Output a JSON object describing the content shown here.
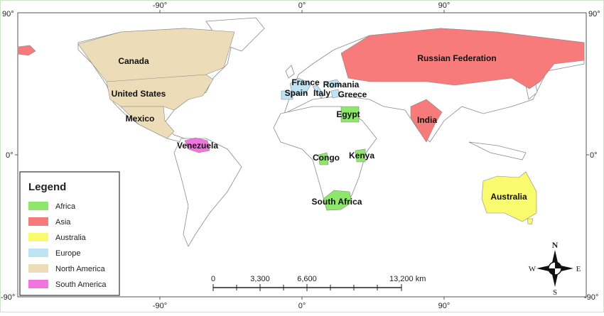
{
  "map": {
    "longitude_labels": [
      "-90°",
      "0°",
      "90°"
    ],
    "latitude_labels": [
      "90°",
      "0°",
      "-90°"
    ],
    "countries": [
      {
        "name": "Canada",
        "region": 4
      },
      {
        "name": "United States",
        "region": 4
      },
      {
        "name": "Mexico",
        "region": 4
      },
      {
        "name": "Venezuela",
        "region": 5
      },
      {
        "name": "France",
        "region": 3
      },
      {
        "name": "Romania",
        "region": 3
      },
      {
        "name": "Spain",
        "region": 3
      },
      {
        "name": "Italy",
        "region": 3
      },
      {
        "name": "Greece",
        "region": 3
      },
      {
        "name": "Egypt",
        "region": 0
      },
      {
        "name": "Congo",
        "region": 0
      },
      {
        "name": "Kenya",
        "region": 0
      },
      {
        "name": "South Africa",
        "region": 0
      },
      {
        "name": "Russian Federation",
        "region": 1
      },
      {
        "name": "India",
        "region": 1
      },
      {
        "name": "Australia",
        "region": 2
      }
    ],
    "legend": {
      "title": "Legend",
      "items": [
        {
          "label": "Africa",
          "color": "#8ee66b"
        },
        {
          "label": "Asia",
          "color": "#f87b7b"
        },
        {
          "label": "Australia",
          "color": "#fafa6e"
        },
        {
          "label": "Europe",
          "color": "#bde3f5"
        },
        {
          "label": "North America",
          "color": "#eddcb8"
        },
        {
          "label": "South America",
          "color": "#f274e0"
        }
      ]
    },
    "scale_bar": {
      "labels": [
        "0",
        "3,300",
        "6,600",
        "13,200 km"
      ]
    },
    "compass": {
      "north": "N",
      "south": "S",
      "east": "E",
      "west": "W"
    }
  }
}
